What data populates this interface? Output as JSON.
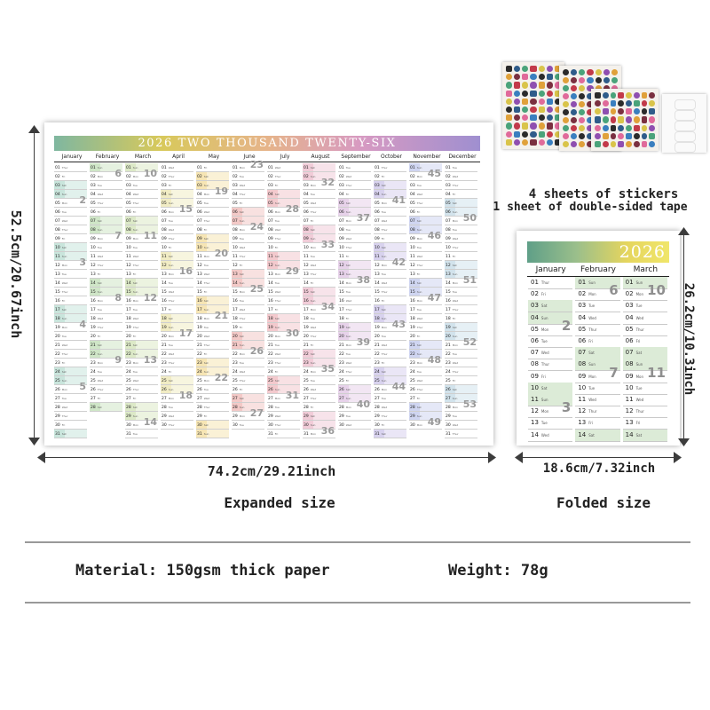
{
  "big_calendar": {
    "title": "2026 TWO THOUSAND TWENTY-SIX",
    "months": [
      "January",
      "February",
      "March",
      "April",
      "May",
      "June",
      "July",
      "August",
      "September",
      "October",
      "November",
      "December"
    ],
    "weekdays": [
      "Sun",
      "Mon",
      "Tue",
      "Wed",
      "Thur",
      "Fri",
      "Sat"
    ],
    "days_in_month": [
      31,
      28,
      31,
      30,
      31,
      30,
      31,
      31,
      30,
      31,
      30,
      31
    ],
    "jan1_weekday_index": 4,
    "month_colors": [
      "#c9e5dc",
      "#cfe6c7",
      "#dce9c7",
      "#f1ecc4",
      "#f6e5b4",
      "#f3c9c7",
      "#f3c9cd",
      "#f1ccd8",
      "#e7d2ea",
      "#d8d2ee",
      "#cfd5f1",
      "#d2e3ec"
    ]
  },
  "small_calendar": {
    "title": "2026",
    "months": [
      "January",
      "February",
      "March"
    ],
    "visible_days": 14,
    "fill_color": "#dcebd7"
  },
  "stickers": {
    "caption_line1": "4 sheets of stickers",
    "caption_line2": "1 sheet of double-sided tape"
  },
  "dimensions": {
    "expanded_height": "52.5cm/20.67inch",
    "expanded_width": "74.2cm/29.21inch",
    "folded_height": "26.2cm/10.3inch",
    "folded_width": "18.6cm/7.32inch"
  },
  "labels": {
    "expanded": "Expanded size",
    "folded": "Folded size",
    "material": "Material: 150gsm thick paper",
    "weight": "Weight: 78g"
  }
}
